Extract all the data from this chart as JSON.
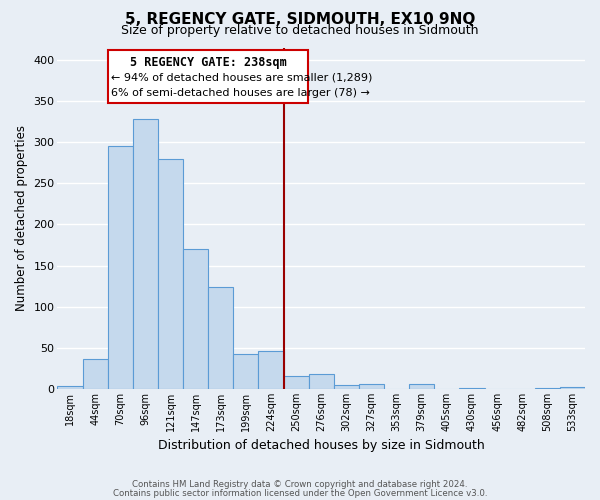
{
  "title": "5, REGENCY GATE, SIDMOUTH, EX10 9NQ",
  "subtitle": "Size of property relative to detached houses in Sidmouth",
  "xlabel": "Distribution of detached houses by size in Sidmouth",
  "ylabel": "Number of detached properties",
  "bar_labels": [
    "18sqm",
    "44sqm",
    "70sqm",
    "96sqm",
    "121sqm",
    "147sqm",
    "173sqm",
    "199sqm",
    "224sqm",
    "250sqm",
    "276sqm",
    "302sqm",
    "327sqm",
    "353sqm",
    "379sqm",
    "405sqm",
    "430sqm",
    "456sqm",
    "482sqm",
    "508sqm",
    "533sqm"
  ],
  "bar_heights": [
    4,
    37,
    295,
    328,
    280,
    170,
    124,
    43,
    46,
    16,
    18,
    5,
    6,
    0,
    6,
    0,
    1,
    0,
    0,
    1,
    2
  ],
  "bar_color": "#c5d9ed",
  "bar_edge_color": "#5b9bd5",
  "marker_line_color": "#990000",
  "box_edge_color": "#cc0000",
  "marker_label": "5 REGENCY GATE: 238sqm",
  "annotation_line1": "← 94% of detached houses are smaller (1,289)",
  "annotation_line2": "6% of semi-detached houses are larger (78) →",
  "ylim": [
    0,
    415
  ],
  "yticks": [
    0,
    50,
    100,
    150,
    200,
    250,
    300,
    350,
    400
  ],
  "footnote1": "Contains HM Land Registry data © Crown copyright and database right 2024.",
  "footnote2": "Contains public sector information licensed under the Open Government Licence v3.0.",
  "background_color": "#e8eef5",
  "grid_color": "#ffffff",
  "title_fontsize": 11,
  "subtitle_fontsize": 9
}
